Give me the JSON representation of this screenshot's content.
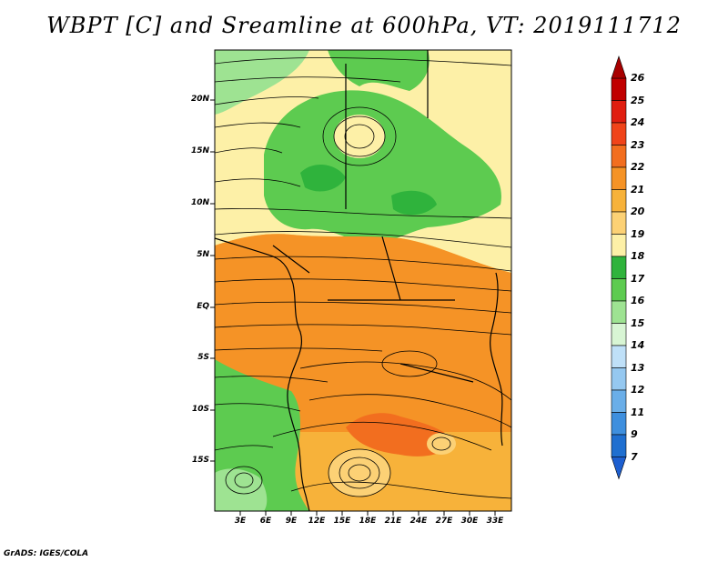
{
  "title": "WBPT [C] and Sreamline at 600hPa, VT: 2019111712",
  "credit": "GrADS: IGES/COLA",
  "map": {
    "lat_ticks": [
      "20N",
      "15N",
      "10N",
      "5N",
      "EQ",
      "5S",
      "10S",
      "15S"
    ],
    "lon_ticks": [
      "3E",
      "6E",
      "9E",
      "12E",
      "15E",
      "18E",
      "21E",
      "24E",
      "27E",
      "30E",
      "33E"
    ]
  },
  "colorbar": {
    "levels": [
      "26",
      "25",
      "24",
      "23",
      "22",
      "21",
      "20",
      "19",
      "18",
      "17",
      "16",
      "15",
      "14",
      "13",
      "12",
      "11",
      "9",
      "7"
    ],
    "colors": [
      "#c00000",
      "#e01e10",
      "#f0441a",
      "#f26e1f",
      "#f59326",
      "#f7b23a",
      "#fcd175",
      "#fdf0a7",
      "#2fb33c",
      "#5dcb50",
      "#9ee392",
      "#d8f5d4",
      "#bfe0f8",
      "#95c8f0",
      "#6aaee8",
      "#3e8fde",
      "#1f6fd0"
    ],
    "top_arrow_color": "#a80000",
    "bottom_arrow_color": "#1d5fd0"
  }
}
